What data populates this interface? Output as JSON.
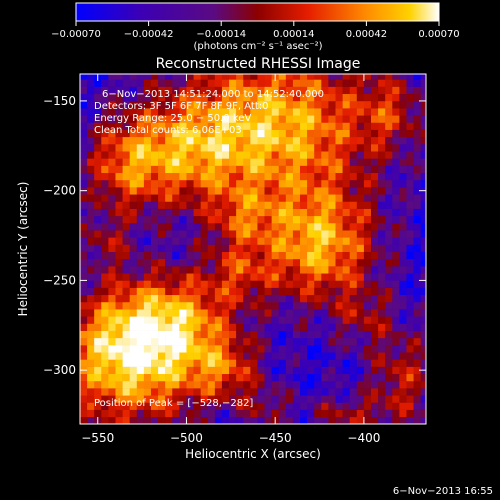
{
  "chart_data": {
    "type": "heatmap",
    "title": "Reconstructed RHESSI Image",
    "xlabel": "Heliocentric X (arcsec)",
    "ylabel": "Heliocentric Y (arcsec)",
    "xlim": [
      -560,
      -365
    ],
    "ylim": [
      -330,
      -135
    ],
    "x_ticks": [
      -550,
      -500,
      -450,
      -400
    ],
    "y_ticks": [
      -150,
      -200,
      -250,
      -300
    ],
    "x_tick_labels": [
      "−550",
      "−500",
      "−450",
      "−400"
    ],
    "y_tick_labels": [
      "−150",
      "−200",
      "−250",
      "−300"
    ],
    "colorbar": {
      "min": -0.0007,
      "max": 0.0007,
      "tick_values": [
        -0.0007,
        -0.00042,
        -0.00014,
        0.00014,
        0.00042,
        0.0007
      ],
      "tick_labels": [
        "−0.00070",
        "−0.00042",
        "−0.00014",
        "0.00014",
        "0.00042",
        "0.00070"
      ],
      "units_label": "(photons cm⁻² s⁻¹ asec⁻²)",
      "colors": [
        "#0000ff",
        "#3c00b4",
        "#5a0a82",
        "#8c0000",
        "#e61e00",
        "#ff8c00",
        "#ffd200",
        "#ffffff"
      ]
    },
    "annotations": [
      "6−Nov−2013 14:51:24.000 to 14:52:40.000",
      "Detectors: 3F 5F 6F 7F 8F 9F, Att:0",
      "Energy Range: 25.0 − 50.0 keV",
      "Clean    Total counts: 6.06E+03"
    ],
    "peak_label": "Position of Peak = [−528,−282]",
    "peak": {
      "x": -528,
      "y": -282
    },
    "grid": false,
    "legend": "colorbar-top"
  },
  "footer_timestamp": "6−Nov−2013 16:55"
}
